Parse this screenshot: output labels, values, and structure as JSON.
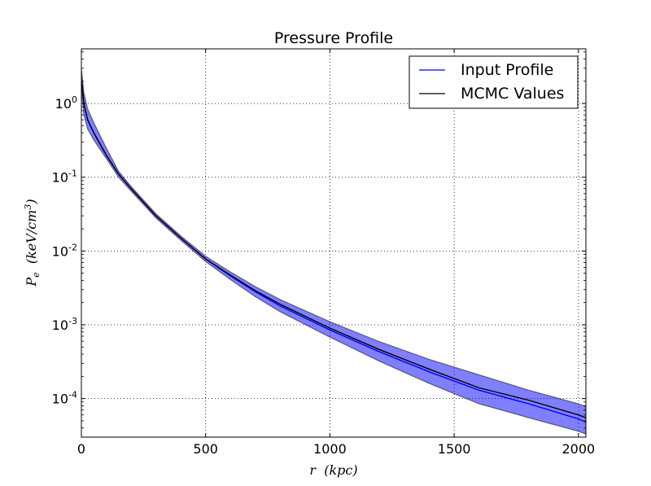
{
  "chart_data": {
    "type": "line",
    "title": "Pressure Profile",
    "xlabel": "r  (kpc)",
    "ylabel": "P_e  (keV/cm^3)",
    "xlim": [
      0,
      2030
    ],
    "ylim": [
      3e-05,
      5.5
    ],
    "yscale": "log",
    "grid": true,
    "legend_position": "top-right",
    "x_ticks": [
      0,
      500,
      1000,
      1500,
      2000
    ],
    "x_tick_labels": [
      "0",
      "500",
      "1000",
      "1500",
      "2000"
    ],
    "y_ticks": [
      1,
      0.1,
      0.01,
      0.001,
      0.0001
    ],
    "y_tick_labels": [
      {
        "base": "10",
        "exp": "0"
      },
      {
        "base": "10",
        "exp": "-1"
      },
      {
        "base": "10",
        "exp": "-2"
      },
      {
        "base": "10",
        "exp": "-3"
      },
      {
        "base": "10",
        "exp": "-4"
      }
    ],
    "series": [
      {
        "name": "Input Profile",
        "color": "#0000ff",
        "x": [
          1,
          10,
          25,
          50,
          100,
          150,
          200,
          300,
          400,
          500,
          600,
          700,
          800,
          1000,
          1200,
          1400,
          1600,
          1800,
          2000,
          2030
        ],
        "y": [
          2.0,
          1.0,
          0.6,
          0.4,
          0.2,
          0.11,
          0.07,
          0.03,
          0.015,
          0.0078,
          0.0046,
          0.0028,
          0.0018,
          0.00085,
          0.00043,
          0.00023,
          0.00013,
          8.5e-05,
          5.3e-05,
          4.8e-05
        ]
      },
      {
        "name": "MCMC Values",
        "color": "#000000",
        "x": [
          1,
          10,
          25,
          50,
          100,
          150,
          200,
          300,
          400,
          500,
          600,
          700,
          800,
          1000,
          1200,
          1400,
          1600,
          1800,
          2000,
          2030
        ],
        "y": [
          2.0,
          1.0,
          0.6,
          0.4,
          0.2,
          0.11,
          0.07,
          0.03,
          0.015,
          0.0078,
          0.0047,
          0.0029,
          0.0019,
          0.0009,
          0.00046,
          0.00025,
          0.00014,
          9.5e-05,
          6e-05,
          5.5e-05
        ]
      }
    ],
    "band": {
      "color": "#0000ff",
      "opacity": 0.5,
      "x": [
        1,
        10,
        25,
        50,
        100,
        150,
        200,
        300,
        400,
        500,
        600,
        700,
        800,
        1000,
        1200,
        1400,
        1600,
        1800,
        2000,
        2030
      ],
      "lower": [
        1.5,
        0.7,
        0.45,
        0.32,
        0.18,
        0.1,
        0.065,
        0.028,
        0.014,
        0.0072,
        0.0041,
        0.0024,
        0.0015,
        0.00068,
        0.00032,
        0.00016,
        8.5e-05,
        5.5e-05,
        3.6e-05,
        3.3e-05
      ],
      "upper": [
        2.8,
        1.4,
        0.85,
        0.55,
        0.25,
        0.12,
        0.075,
        0.032,
        0.016,
        0.0085,
        0.0052,
        0.0033,
        0.0022,
        0.0011,
        0.00059,
        0.00034,
        0.00021,
        0.00013,
        8.5e-05,
        7.8e-05
      ]
    }
  }
}
